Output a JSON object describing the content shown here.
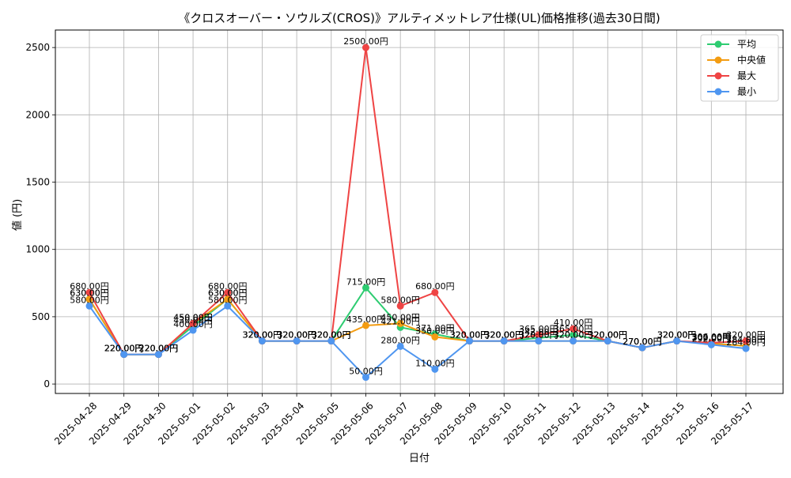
{
  "chart_data": {
    "type": "line",
    "title": "《クロスオーバー・ソウルズ(CROS)》アルティメットレア仕様(UL)価格推移(過去30日間)",
    "xlabel": "日付",
    "ylabel": "値 (円)",
    "ylim": [
      -70,
      2630
    ],
    "yticks": [
      0,
      500,
      1000,
      1500,
      2000,
      2500
    ],
    "grid": true,
    "legend_position": "top-right",
    "value_suffix": "円",
    "categories": [
      "2025-04-28",
      "2025-04-29",
      "2025-04-30",
      "2025-05-01",
      "2025-05-02",
      "2025-05-03",
      "2025-05-04",
      "2025-05-05",
      "2025-05-06",
      "2025-05-07",
      "2025-05-08",
      "2025-05-09",
      "2025-05-10",
      "2025-05-11",
      "2025-05-12",
      "2025-05-13",
      "2025-05-14",
      "2025-05-15",
      "2025-05-16",
      "2025-05-17"
    ],
    "series": [
      {
        "name": "平均",
        "color": "#2ecc71",
        "values": [
          630,
          220,
          220,
          430,
          630,
          320,
          320,
          320,
          715,
          421,
          371,
          320,
          320,
          342,
          365,
          320,
          270,
          320,
          302,
          284
        ]
      },
      {
        "name": " 中央値",
        "color": "#f39c12",
        "values": [
          630,
          220,
          220,
          450,
          630,
          320,
          320,
          320,
          435,
          450,
          350,
          320,
          320,
          320,
          320,
          320,
          270,
          320,
          300,
          284
        ]
      },
      {
        "name": "最大",
        "color": "#ef4444",
        "values": [
          680,
          220,
          220,
          450,
          680,
          320,
          320,
          320,
          2500,
          580,
          680,
          320,
          320,
          365,
          410,
          320,
          270,
          320,
          306,
          320
        ]
      },
      {
        "name": "最小",
        "color": "#4f96f0",
        "values": [
          580,
          220,
          220,
          400,
          580,
          320,
          320,
          320,
          50,
          280,
          110,
          320,
          320,
          320,
          320,
          320,
          270,
          320,
          292,
          264
        ]
      }
    ]
  }
}
